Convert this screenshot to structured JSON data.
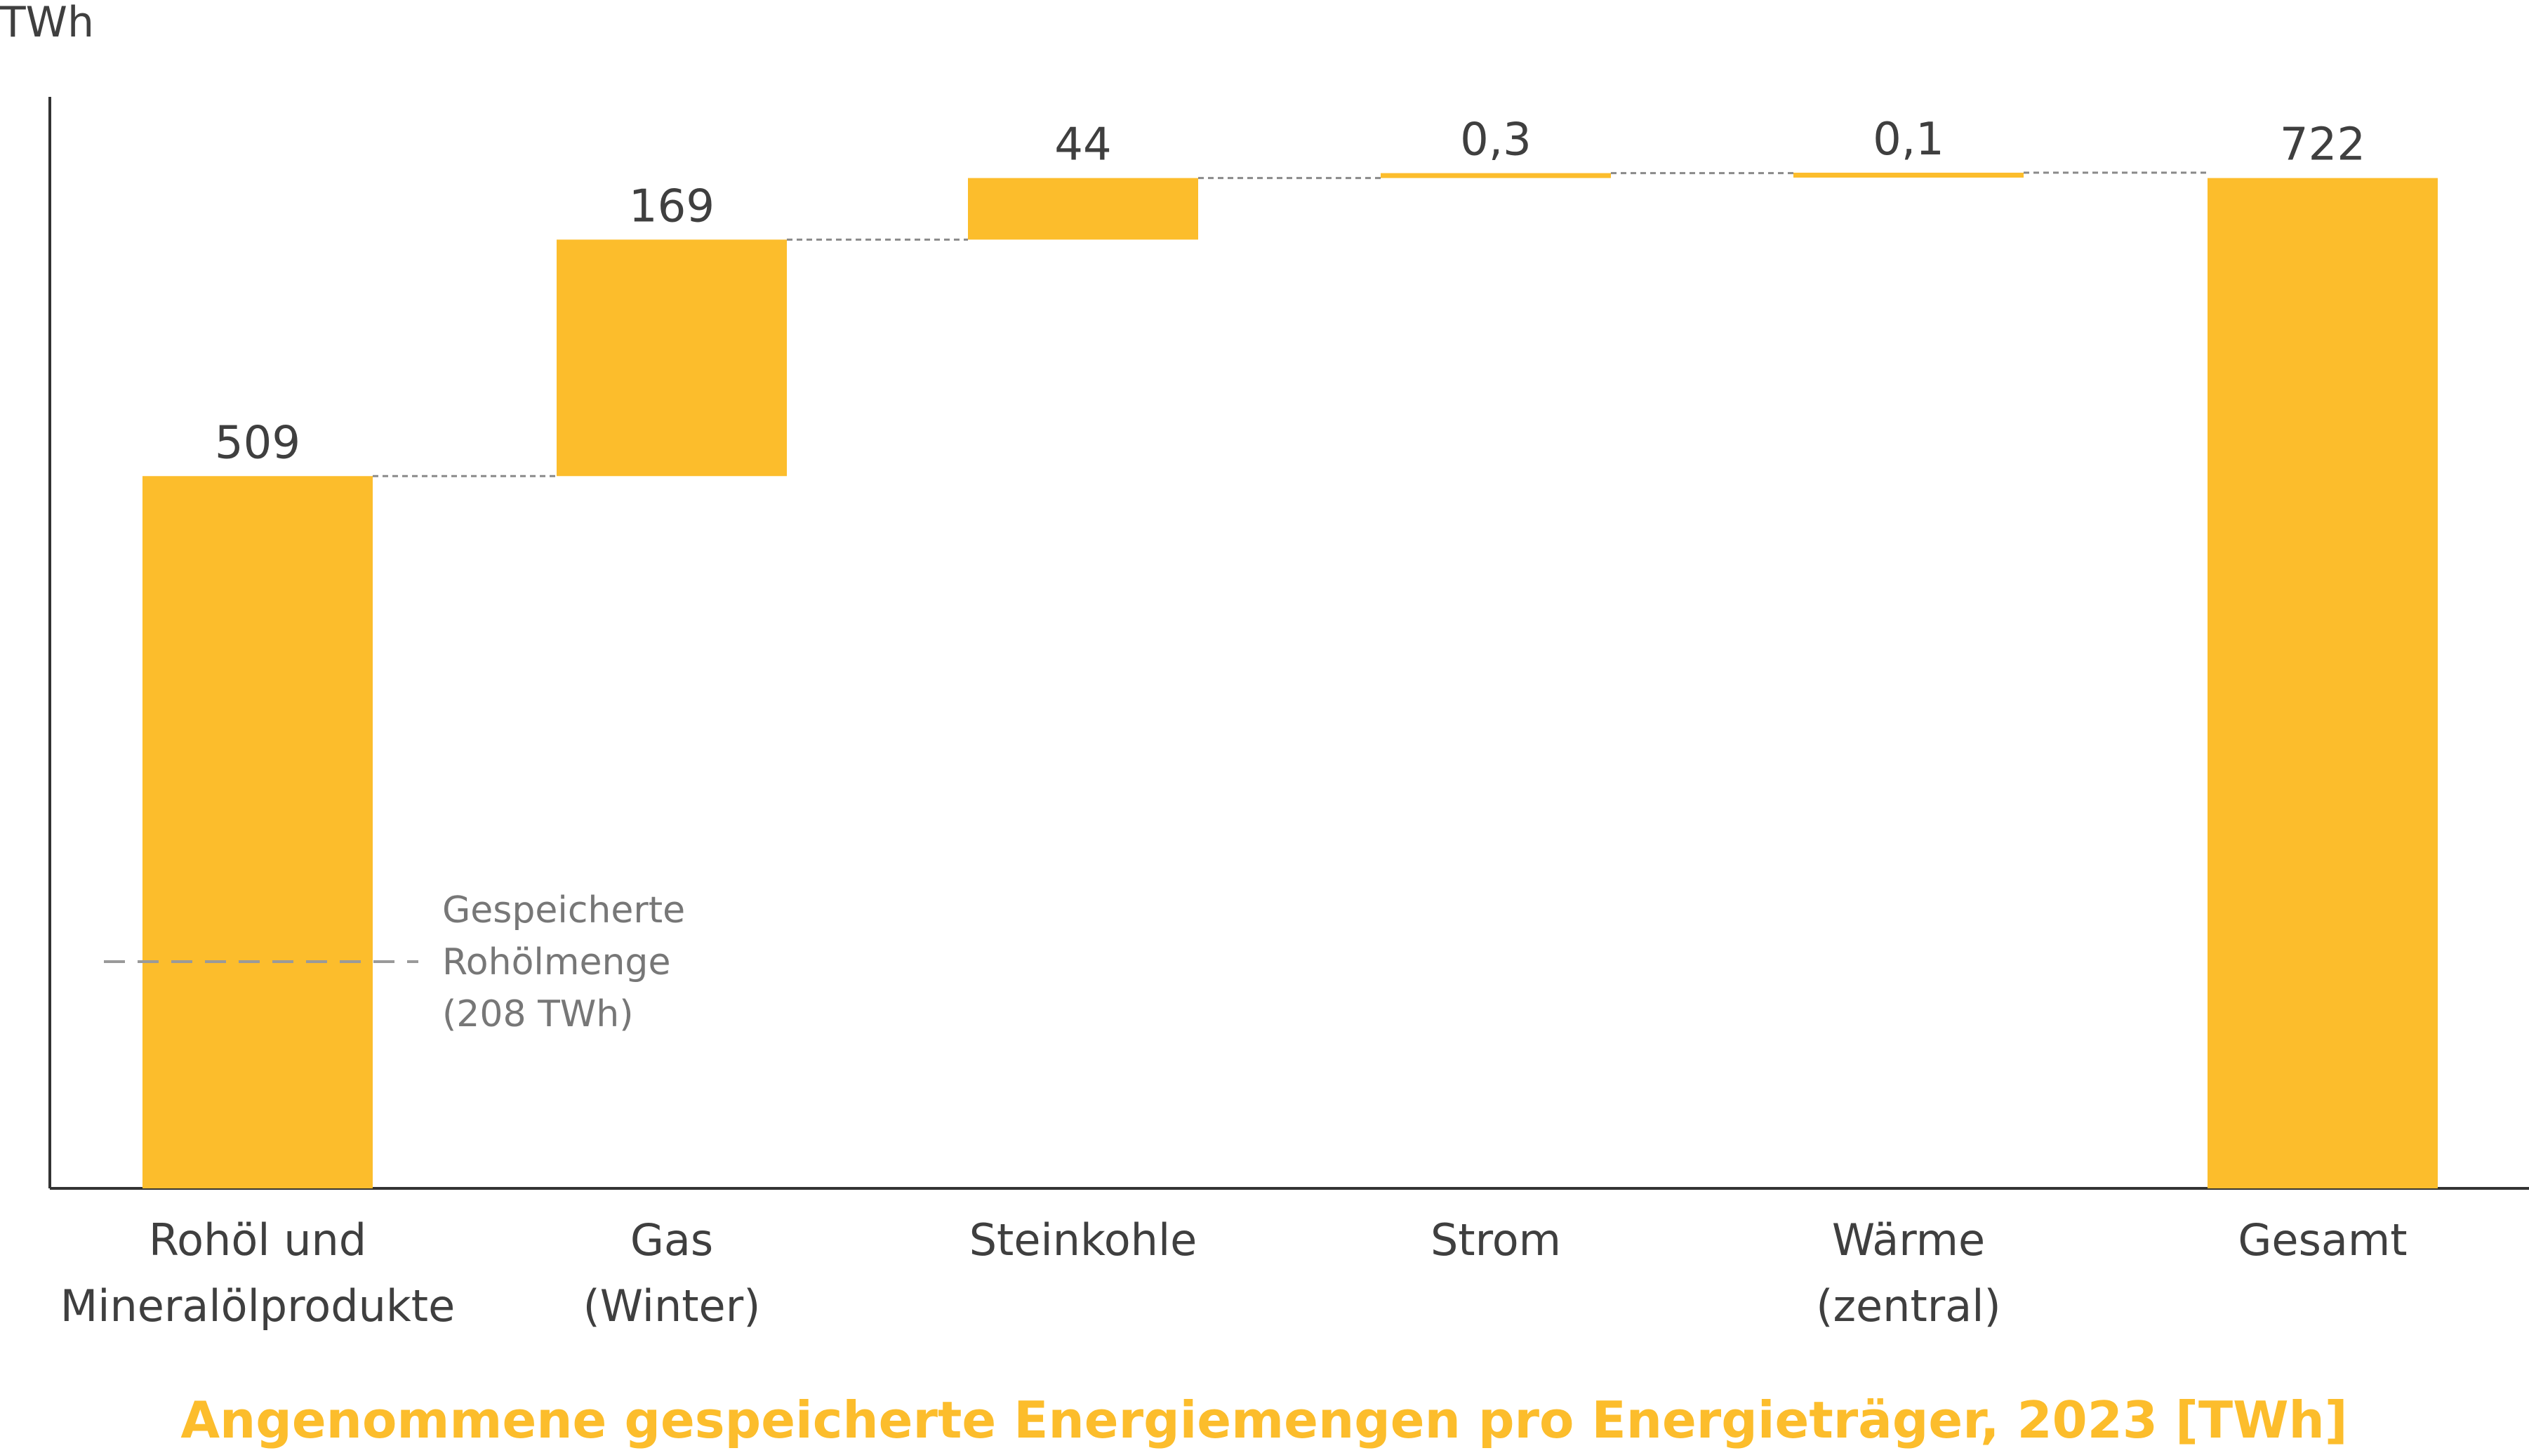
{
  "chart_data": {
    "type": "bar",
    "subtype": "waterfall",
    "title": "Angenommene gespeicherte Energiemengen pro Energieträger, 2023 [TWh]",
    "ylabel": "TWh",
    "xlabel": "",
    "ylim": [
      0,
      780
    ],
    "grid": false,
    "legend": "none",
    "bar_color": "#fcbd2c",
    "categories": [
      [
        "Rohöl und",
        "Mineralölprodukte"
      ],
      [
        "Gas",
        "(Winter)"
      ],
      [
        "Steinkohle"
      ],
      [
        "Strom"
      ],
      [
        "Wärme",
        "(zentral)"
      ],
      [
        "Gesamt"
      ]
    ],
    "values": [
      509,
      169,
      44,
      0.3,
      0.1,
      722
    ],
    "value_labels": [
      "509",
      "169",
      "44",
      "0,3",
      "0,1",
      "722"
    ],
    "is_total": [
      false,
      false,
      false,
      false,
      false,
      true
    ],
    "annotation": {
      "category_index": 0,
      "value": 208,
      "lines": [
        "Gespeicherte",
        "Rohölmenge",
        "(208 TWh)"
      ]
    }
  }
}
